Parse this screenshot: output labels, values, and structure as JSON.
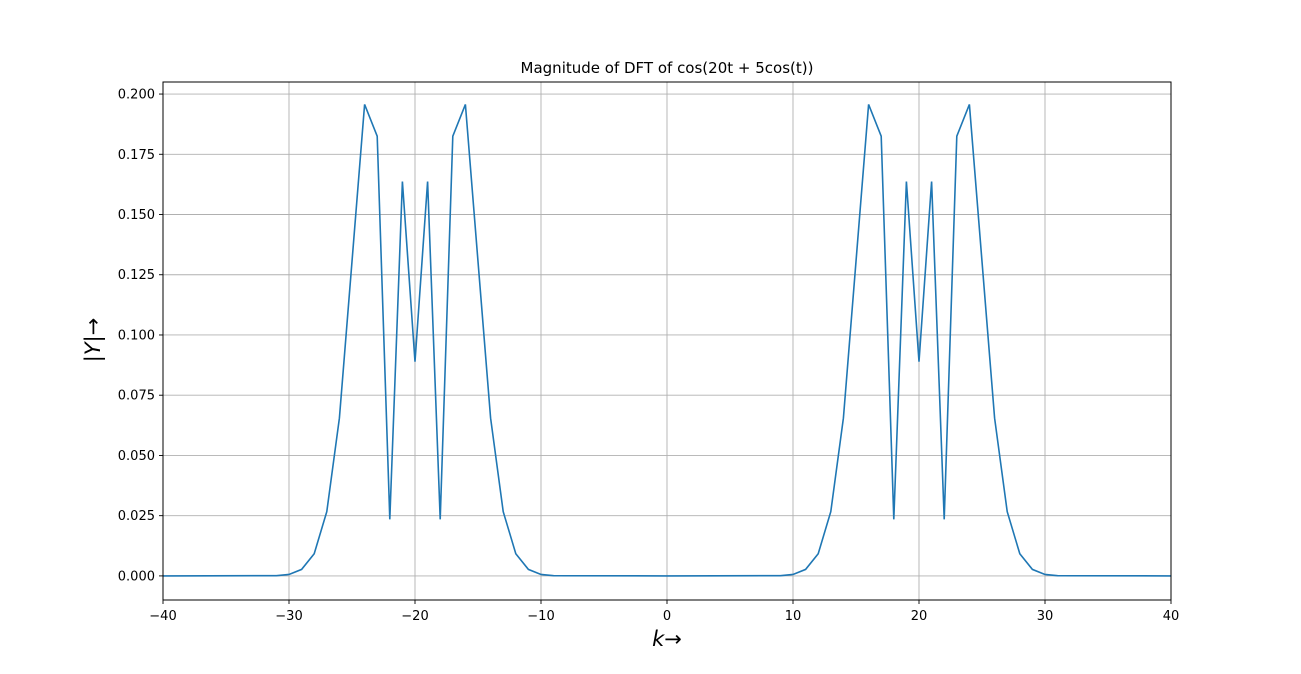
{
  "chart_data": {
    "type": "line",
    "title": "Magnitude of DFT of cos(20t + 5cos(t))",
    "xlabel": "k→",
    "ylabel": "|Y|→",
    "xlim": [
      -40,
      40
    ],
    "ylim": [
      -0.01,
      0.205
    ],
    "grid": true,
    "legend": "none",
    "line_color": "#1f77b4",
    "xticks": [
      -40,
      -30,
      -20,
      -10,
      0,
      10,
      20,
      30,
      40
    ],
    "xtick_labels": [
      "−40",
      "−30",
      "−20",
      "−10",
      "0",
      "10",
      "20",
      "30",
      "40"
    ],
    "yticks": [
      0.0,
      0.025,
      0.05,
      0.075,
      0.1,
      0.125,
      0.15,
      0.175,
      0.2
    ],
    "ytick_labels": [
      "0.000",
      "0.025",
      "0.050",
      "0.075",
      "0.100",
      "0.125",
      "0.150",
      "0.175",
      "0.200"
    ],
    "series": [
      {
        "x": [
          -40,
          -31,
          -30,
          -29,
          -28,
          -27,
          -26,
          -25,
          -24,
          -23,
          -22,
          -21,
          -20,
          -19,
          -18,
          -17,
          -16,
          -15,
          -14,
          -13,
          -12,
          -11,
          -10,
          -9,
          0,
          9,
          10,
          11,
          12,
          13,
          14,
          15,
          16,
          17,
          18,
          19,
          20,
          21,
          22,
          23,
          24,
          25,
          26,
          27,
          28,
          29,
          30,
          31,
          40
        ],
        "y": [
          0.0,
          0.0001,
          0.0006,
          0.0027,
          0.0092,
          0.0267,
          0.0655,
          0.1305,
          0.1957,
          0.1825,
          0.0235,
          0.1637,
          0.0889,
          0.1637,
          0.0235,
          0.1825,
          0.1957,
          0.1305,
          0.0655,
          0.0267,
          0.0092,
          0.0027,
          0.0006,
          0.0001,
          0.0,
          0.0001,
          0.0006,
          0.0027,
          0.0092,
          0.0267,
          0.0655,
          0.1305,
          0.1957,
          0.1825,
          0.0235,
          0.1637,
          0.0889,
          0.1637,
          0.0235,
          0.1825,
          0.1957,
          0.1305,
          0.0655,
          0.0267,
          0.0092,
          0.0027,
          0.0006,
          0.0001,
          0.0
        ]
      }
    ]
  }
}
